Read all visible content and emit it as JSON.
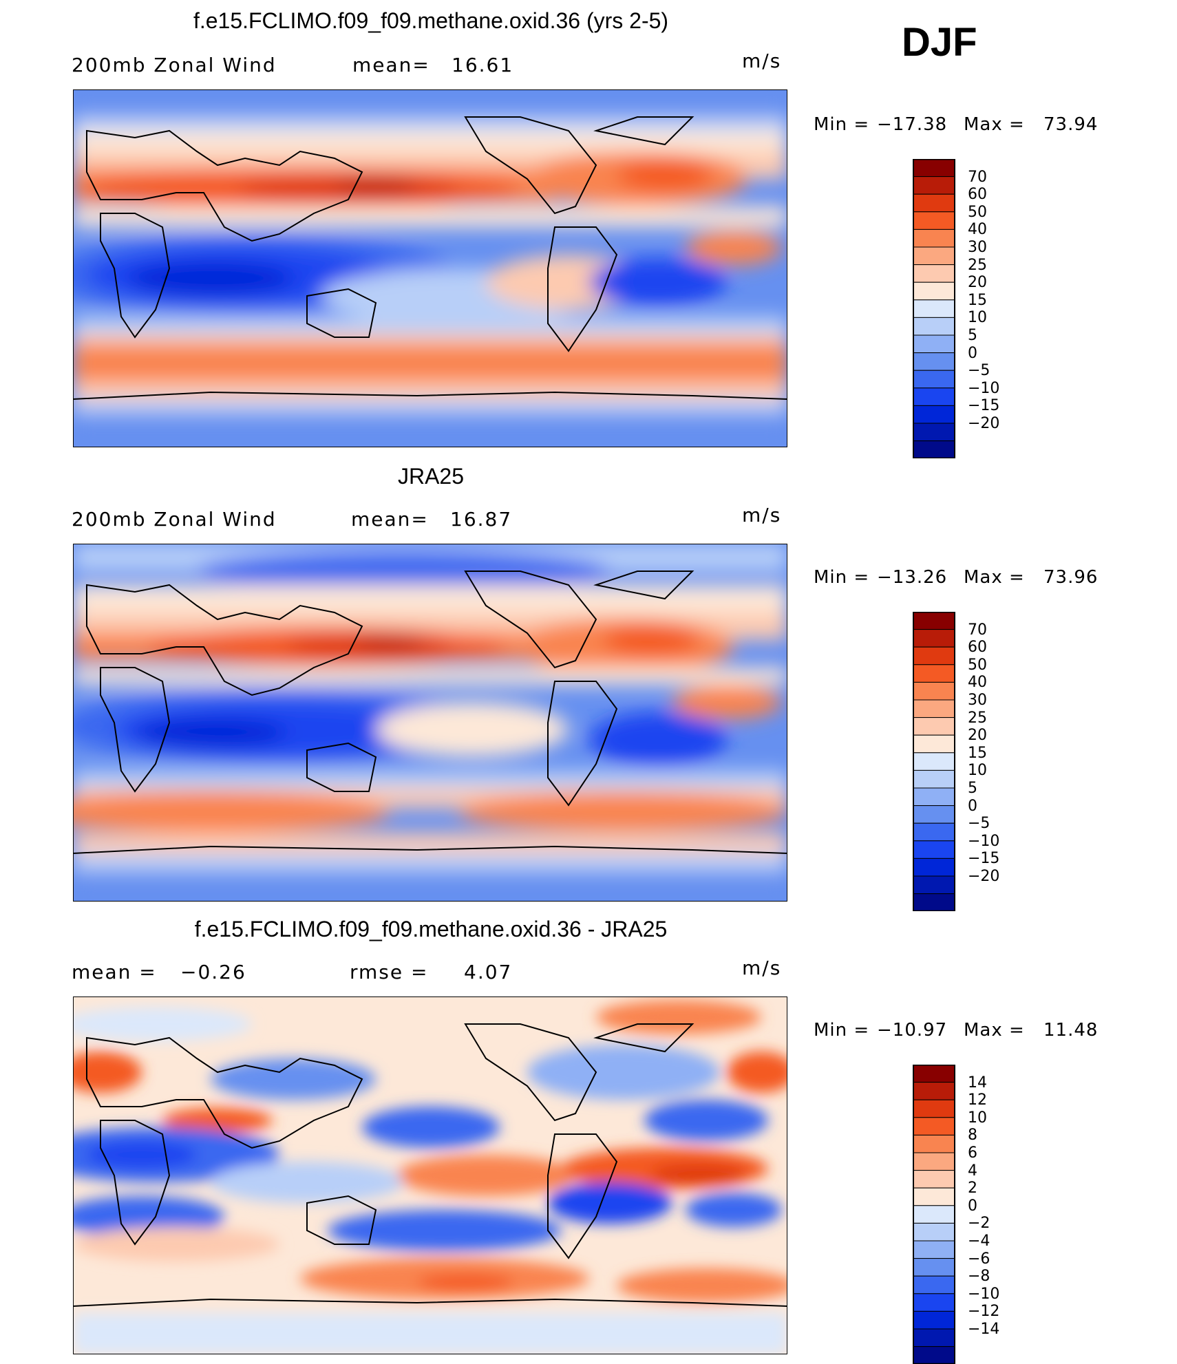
{
  "season": "DJF",
  "colors": {
    "wind_scale": [
      "#000a8a",
      "#0018b0",
      "#0026d8",
      "#1a45f0",
      "#3a68f0",
      "#6690f0",
      "#8fb0f5",
      "#b8cff8",
      "#dbe8fb",
      "#fde8d8",
      "#fdcab0",
      "#fba880",
      "#f98450",
      "#f45a24",
      "#e03a10",
      "#b81c08",
      "#880000"
    ],
    "diff_scale": [
      "#000a8a",
      "#0018b0",
      "#0026d8",
      "#1a45f0",
      "#3a68f0",
      "#6690f0",
      "#8fb0f5",
      "#b8cff8",
      "#dbe8fb",
      "#fde8d8",
      "#fdcab0",
      "#fba880",
      "#f98450",
      "#f45a24",
      "#e03a10",
      "#b81c08",
      "#880000"
    ],
    "land_outline": "#000000"
  },
  "panels": [
    {
      "title": "f.e15.FCLIMO.f09_f09.methane.oxid.36 (yrs 2-5)",
      "left_label": "200mb  Zonal  Wind",
      "stat_label": "mean=",
      "stat_value": "16.61",
      "units": "m/s",
      "min_label": "Min  =",
      "min_value": "−17.38",
      "max_label": "Max  =",
      "max_value": "73.94",
      "colorbar_labels": [
        "70",
        "60",
        "50",
        "40",
        "30",
        "25",
        "20",
        "15",
        "10",
        "5",
        "0",
        "−5",
        "−10",
        "−15",
        "−20"
      ]
    },
    {
      "title": "JRA25",
      "left_label": "200mb  Zonal  Wind",
      "stat_label": "mean=",
      "stat_value": "16.87",
      "units": "m/s",
      "min_label": "Min  =",
      "min_value": "−13.26",
      "max_label": "Max  =",
      "max_value": "73.96",
      "colorbar_labels": [
        "70",
        "60",
        "50",
        "40",
        "30",
        "25",
        "20",
        "15",
        "10",
        "5",
        "0",
        "−5",
        "−10",
        "−15",
        "−20"
      ]
    },
    {
      "title": "f.e15.FCLIMO.f09_f09.methane.oxid.36 - JRA25",
      "left_label": "mean  =",
      "left_value": "−0.26",
      "stat_label": "rmse  =",
      "stat_value": "4.07",
      "units": "m/s",
      "min_label": "Min  =",
      "min_value": "−10.97",
      "max_label": "Max  =",
      "max_value": "11.48",
      "colorbar_labels": [
        "14",
        "12",
        "10",
        "8",
        "6",
        "4",
        "2",
        "0",
        "−2",
        "−4",
        "−6",
        "−8",
        "−10",
        "−12",
        "−14"
      ]
    }
  ]
}
